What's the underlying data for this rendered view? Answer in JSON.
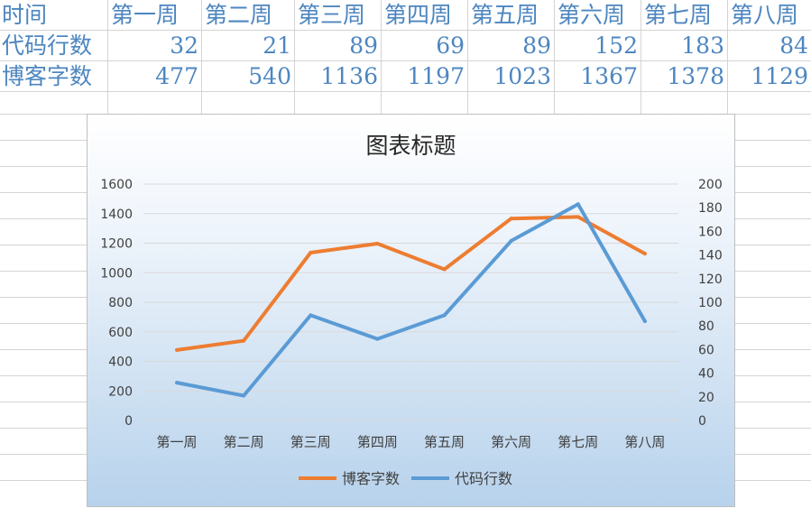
{
  "table": {
    "header_label": "时间",
    "weeks": [
      "第一周",
      "第二周",
      "第三周",
      "第四周",
      "第五周",
      "第六周",
      "第七周",
      "第八周"
    ],
    "rows": [
      {
        "label": "代码行数",
        "values": [
          "32",
          "21",
          "89",
          "69",
          "89",
          "152",
          "183",
          "84"
        ]
      },
      {
        "label": "博客字数",
        "values": [
          "477",
          "540",
          "1136",
          "1197",
          "1023",
          "1367",
          "1378",
          "1129"
        ]
      }
    ]
  },
  "chart_data": {
    "type": "line",
    "title": "图表标题",
    "categories": [
      "第一周",
      "第二周",
      "第三周",
      "第四周",
      "第五周",
      "第六周",
      "第七周",
      "第八周"
    ],
    "series": [
      {
        "name": "博客字数",
        "axis": "left",
        "color": "#ed7d31",
        "values": [
          477,
          540,
          1136,
          1197,
          1023,
          1367,
          1378,
          1129
        ]
      },
      {
        "name": "代码行数",
        "axis": "right",
        "color": "#5b9bd5",
        "values": [
          32,
          21,
          89,
          69,
          89,
          152,
          183,
          84
        ]
      }
    ],
    "ylim_left": [
      0,
      1600
    ],
    "ylim_right": [
      0,
      200
    ],
    "yticks_left": [
      "0",
      "200",
      "400",
      "600",
      "800",
      "1000",
      "1200",
      "1400",
      "1600"
    ],
    "yticks_right": [
      "0",
      "20",
      "40",
      "60",
      "80",
      "100",
      "120",
      "140",
      "160",
      "180",
      "200"
    ],
    "grid": true,
    "legend_position": "bottom"
  }
}
